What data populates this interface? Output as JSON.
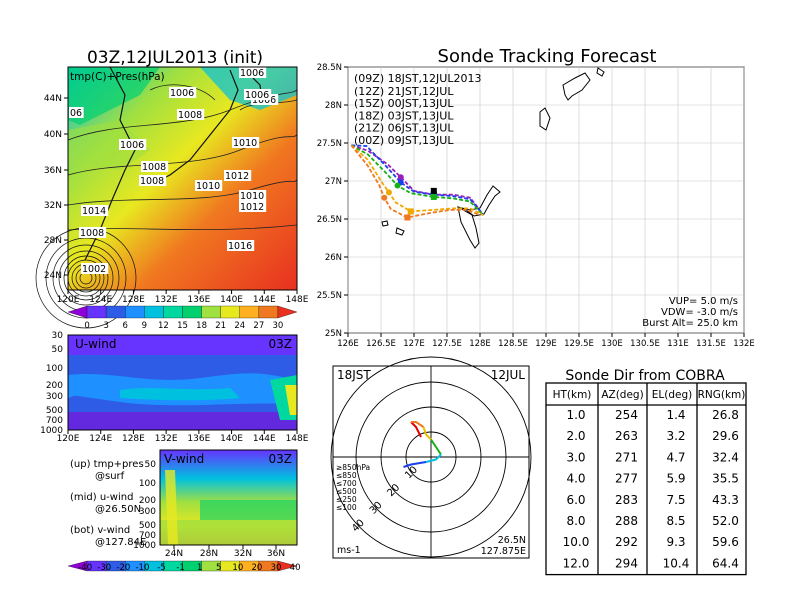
{
  "chart_data": [
    {
      "type": "heatmap",
      "id": "surface",
      "title": "03Z,12JUL2013 (init)",
      "legend_label": "tmp(C)+Pres(hPa)",
      "x_ticks": [
        "120E",
        "124E",
        "128E",
        "132E",
        "136E",
        "140E",
        "144E",
        "148E"
      ],
      "y_ticks": [
        "24N",
        "28N",
        "32N",
        "36N",
        "40N",
        "44N"
      ],
      "colorbar_ticks": [
        "0",
        "3",
        "6",
        "9",
        "12",
        "15",
        "18",
        "21",
        "24",
        "27",
        "30"
      ],
      "contour_labels": [
        "1006",
        "1006",
        "1008",
        "1006",
        "1006",
        "06",
        "1006",
        "1010",
        "1008",
        "1012",
        "1010",
        "1008",
        "1010",
        "1012",
        "1014",
        "1008",
        "1016",
        "1002"
      ],
      "colors": [
        "#8f00d8",
        "#6633ff",
        "#2e5ce6",
        "#1e90ff",
        "#00c0e0",
        "#00d8a0",
        "#00d070",
        "#a0e040",
        "#e8e820",
        "#ffb020",
        "#f07820",
        "#e83020"
      ]
    },
    {
      "type": "heatmap",
      "id": "u_wind",
      "title": "U-wind",
      "time": "03Z",
      "x_ticks": [
        "120E",
        "124E",
        "128E",
        "132E",
        "136E",
        "140E",
        "144E",
        "148E"
      ],
      "y_ticks": [
        "30",
        "50",
        "100",
        "200",
        "300",
        "500",
        "700",
        "1000"
      ]
    },
    {
      "type": "heatmap",
      "id": "v_wind",
      "title": "V-wind",
      "time": "03Z",
      "x_ticks": [
        "24N",
        "28N",
        "32N",
        "36N"
      ],
      "y_ticks": [
        "50",
        "100",
        "200",
        "300",
        "500",
        "700",
        "1000"
      ],
      "colorbar_ticks": [
        "-40",
        "-30",
        "-20",
        "-10",
        "-5",
        "-1",
        "1",
        "5",
        "10",
        "20",
        "30",
        "40"
      ],
      "colors": [
        "#8f00d8",
        "#6633ff",
        "#2e5ce6",
        "#1e90ff",
        "#00c0e0",
        "#00d8a0",
        "#00d070",
        "#a0e040",
        "#e8e820",
        "#ffb020",
        "#f07820",
        "#e83020"
      ]
    },
    {
      "type": "line",
      "id": "tracking",
      "title": "Sonde Tracking Forecast",
      "x_ticks": [
        "126E",
        "126.5E",
        "127E",
        "127.5E",
        "128E",
        "128.5E",
        "129E",
        "129.5E",
        "130E",
        "130.5E",
        "131E",
        "131.5E",
        "132E"
      ],
      "y_ticks": [
        "25N",
        "25.5N",
        "26N",
        "26.5N",
        "27N",
        "27.5N",
        "28N",
        "28.5N"
      ],
      "xlim": [
        126,
        132
      ],
      "ylim": [
        25,
        28.5
      ],
      "legend_header": "(09Z) 18JST,12JUL2013",
      "series": [
        {
          "name": "(12Z) 21JST,12JUL",
          "color": "#9a1fb8",
          "x": [
            126.05,
            126.3,
            126.6,
            126.8,
            127.0,
            127.3,
            127.6,
            127.85,
            127.95,
            128.05
          ],
          "y": [
            27.47,
            27.4,
            27.22,
            27.05,
            26.87,
            26.82,
            26.82,
            26.78,
            26.67,
            26.55
          ]
        },
        {
          "name": "(15Z) 00JST,13JUL",
          "color": "#1c3ff0",
          "x": [
            126.05,
            126.28,
            126.55,
            126.8,
            127.0,
            127.3,
            127.6,
            127.85,
            127.95,
            128.05
          ],
          "y": [
            27.47,
            27.46,
            27.22,
            26.98,
            26.86,
            26.82,
            26.8,
            26.76,
            26.66,
            26.55
          ]
        },
        {
          "name": "(18Z) 03JST,13JUL",
          "color": "#15b015",
          "x": [
            126.05,
            126.3,
            126.55,
            126.75,
            126.95,
            127.3,
            127.6,
            127.85,
            127.95,
            128.05
          ],
          "y": [
            27.47,
            27.35,
            27.13,
            26.94,
            26.84,
            26.79,
            26.77,
            26.73,
            26.64,
            26.55
          ]
        },
        {
          "name": "(21Z) 06JST,13JUL",
          "color": "#f0a800",
          "x": [
            126.05,
            126.3,
            126.5,
            126.62,
            126.72,
            126.95,
            127.3,
            127.6,
            127.85,
            128.05
          ],
          "y": [
            27.47,
            27.28,
            27.0,
            26.85,
            26.72,
            26.6,
            26.62,
            26.64,
            26.64,
            26.55
          ]
        },
        {
          "name": "(00Z) 09JST,13JUL",
          "color": "#f07820",
          "x": [
            126.05,
            126.3,
            126.47,
            126.55,
            126.65,
            126.9,
            127.25,
            127.55,
            127.8,
            128.0
          ],
          "y": [
            27.47,
            27.2,
            26.95,
            26.78,
            26.63,
            26.52,
            26.58,
            26.62,
            26.62,
            26.55
          ]
        }
      ],
      "current_position": {
        "x": 127.3,
        "y": 26.87
      },
      "info_lines": [
        "VUP= 5.0 m/s",
        "VDW= -3.0 m/s",
        "Burst Alt= 25.0 km"
      ]
    },
    {
      "type": "line",
      "id": "hodograph",
      "time_left": "18JST",
      "time_right": "12JUL",
      "location_lat": "26.5N",
      "location_lon": "127.875E",
      "unit": "ms-1",
      "ring_labels": [
        "10",
        "20",
        "30",
        "40"
      ],
      "level_legend": [
        {
          "label": "≥850hPa",
          "color": "#e00000"
        },
        {
          "label": "≤850",
          "color": "#f07820"
        },
        {
          "label": "≤700",
          "color": "#e8c000"
        },
        {
          "label": "≤500",
          "color": "#15b015"
        },
        {
          "label": "≤250",
          "color": "#00c0e0"
        },
        {
          "label": "≤100",
          "color": "#1c3ff0"
        }
      ],
      "segments": [
        {
          "color": "#e00000",
          "u": [
            -4,
            -6,
            -8
          ],
          "v": [
            8,
            12,
            14
          ]
        },
        {
          "color": "#f07820",
          "u": [
            -8,
            -6,
            -3
          ],
          "v": [
            14,
            14,
            12
          ]
        },
        {
          "color": "#e8c000",
          "u": [
            -3,
            -2,
            0
          ],
          "v": [
            12,
            9,
            7
          ]
        },
        {
          "color": "#15b015",
          "u": [
            0,
            2,
            4
          ],
          "v": [
            7,
            4,
            1
          ]
        },
        {
          "color": "#00c0e0",
          "u": [
            4,
            2,
            -2
          ],
          "v": [
            1,
            -1,
            -2
          ]
        },
        {
          "color": "#1c3ff0",
          "u": [
            -2,
            -8,
            -11
          ],
          "v": [
            -2,
            -3,
            -4
          ]
        }
      ]
    },
    {
      "type": "table",
      "id": "sonde_dir",
      "title": "Sonde Dir from COBRA",
      "columns": [
        "HT(km)",
        "AZ(deg)",
        "EL(deg)",
        "RNG(km)"
      ],
      "rows": [
        [
          "1.0",
          "254",
          "1.4",
          "26.8"
        ],
        [
          "2.0",
          "263",
          "3.2",
          "29.6"
        ],
        [
          "3.0",
          "271",
          "4.7",
          "32.4"
        ],
        [
          "4.0",
          "277",
          "5.9",
          "35.5"
        ],
        [
          "6.0",
          "283",
          "7.5",
          "43.3"
        ],
        [
          "8.0",
          "288",
          "8.5",
          "52.0"
        ],
        [
          "10.0",
          "292",
          "9.3",
          "59.6"
        ],
        [
          "12.0",
          "294",
          "10.4",
          "64.4"
        ]
      ]
    }
  ],
  "notes": {
    "up": "(up) tmp+pres",
    "up2": "@surf",
    "mid": "(mid) u-wind",
    "mid2": "@26.50N",
    "bot": "(bot) v-wind",
    "bot2": "@127.84E"
  }
}
